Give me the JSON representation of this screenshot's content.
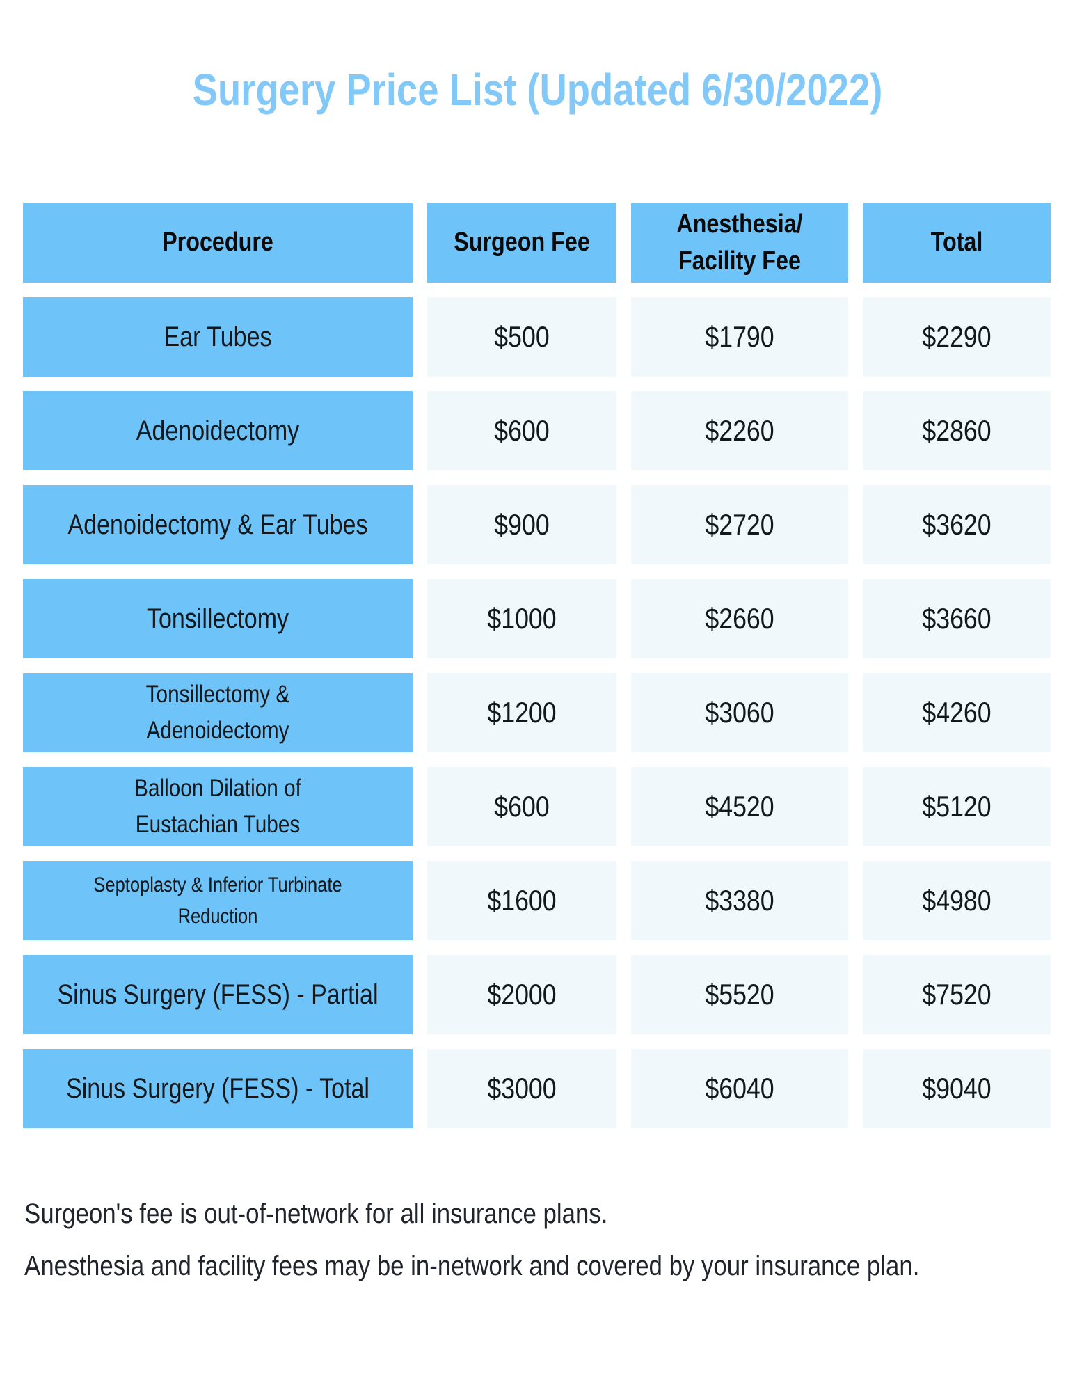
{
  "title": "Surgery Price List (Updated 6/30/2022)",
  "colors": {
    "title_blue": "#82C8F8",
    "cell_blue": "#6EC3F8",
    "value_cell_bg": "#F0F8FC",
    "text_dark": "#13181d"
  },
  "table": {
    "headers": {
      "procedure": "Procedure",
      "surgeon_fee": "Surgeon Fee",
      "anesthesia_facility_fee": "Anesthesia/\nFacility Fee",
      "total": "Total"
    },
    "rows": [
      {
        "procedure": "Ear Tubes",
        "surgeon_fee": "$500",
        "anesthesia_facility_fee": "$1790",
        "total": "$2290"
      },
      {
        "procedure": "Adenoidectomy",
        "surgeon_fee": "$600",
        "anesthesia_facility_fee": "$2260",
        "total": "$2860"
      },
      {
        "procedure": "Adenoidectomy & Ear Tubes",
        "surgeon_fee": "$900",
        "anesthesia_facility_fee": "$2720",
        "total": "$3620"
      },
      {
        "procedure": "Tonsillectomy",
        "surgeon_fee": "$1000",
        "anesthesia_facility_fee": "$2660",
        "total": "$3660"
      },
      {
        "procedure": "Tonsillectomy &\nAdenoidectomy",
        "surgeon_fee": "$1200",
        "anesthesia_facility_fee": "$3060",
        "total": "$4260"
      },
      {
        "procedure": "Balloon Dilation of\nEustachian Tubes",
        "surgeon_fee": "$600",
        "anesthesia_facility_fee": "$4520",
        "total": "$5120"
      },
      {
        "procedure": "Septoplasty & Inferior Turbinate\nReduction",
        "surgeon_fee": "$1600",
        "anesthesia_facility_fee": "$3380",
        "total": "$4980"
      },
      {
        "procedure": "Sinus Surgery (FESS) - Partial",
        "surgeon_fee": "$2000",
        "anesthesia_facility_fee": "$5520",
        "total": "$7520"
      },
      {
        "procedure": "Sinus Surgery (FESS) - Total",
        "surgeon_fee": "$3000",
        "anesthesia_facility_fee": "$6040",
        "total": "$9040"
      }
    ]
  },
  "footer": {
    "line1": "Surgeon's fee is out-of-network for all insurance plans.",
    "line2": "Anesthesia and facility fees may be in-network and covered by your insurance plan."
  }
}
